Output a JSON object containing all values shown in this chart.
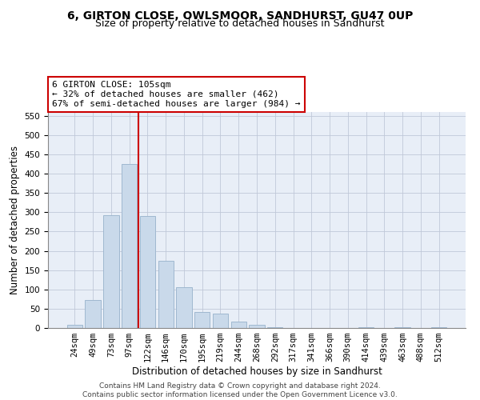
{
  "title": "6, GIRTON CLOSE, OWLSMOOR, SANDHURST, GU47 0UP",
  "subtitle": "Size of property relative to detached houses in Sandhurst",
  "xlabel": "Distribution of detached houses by size in Sandhurst",
  "ylabel": "Number of detached properties",
  "categories": [
    "24sqm",
    "49sqm",
    "73sqm",
    "97sqm",
    "122sqm",
    "146sqm",
    "170sqm",
    "195sqm",
    "219sqm",
    "244sqm",
    "268sqm",
    "292sqm",
    "317sqm",
    "341sqm",
    "366sqm",
    "390sqm",
    "414sqm",
    "439sqm",
    "463sqm",
    "488sqm",
    "512sqm"
  ],
  "values": [
    8,
    72,
    292,
    425,
    290,
    175,
    105,
    42,
    38,
    17,
    8,
    2,
    1,
    1,
    1,
    0,
    2,
    0,
    3,
    0,
    2
  ],
  "bar_color": "#c9d9ea",
  "bar_edge_color": "#a0b8d0",
  "vline_color": "#cc0000",
  "vline_x": 3.5,
  "annotation_text": "6 GIRTON CLOSE: 105sqm\n← 32% of detached houses are smaller (462)\n67% of semi-detached houses are larger (984) →",
  "annotation_box_color": "#ffffff",
  "annotation_box_edge_color": "#cc0000",
  "ylim": [
    0,
    560
  ],
  "yticks": [
    0,
    50,
    100,
    150,
    200,
    250,
    300,
    350,
    400,
    450,
    500,
    550
  ],
  "bg_color": "#e8eef7",
  "footer_text": "Contains HM Land Registry data © Crown copyright and database right 2024.\nContains public sector information licensed under the Open Government Licence v3.0.",
  "title_fontsize": 10,
  "subtitle_fontsize": 9,
  "xlabel_fontsize": 8.5,
  "ylabel_fontsize": 8.5,
  "tick_fontsize": 7.5,
  "annotation_fontsize": 8,
  "footer_fontsize": 6.5
}
